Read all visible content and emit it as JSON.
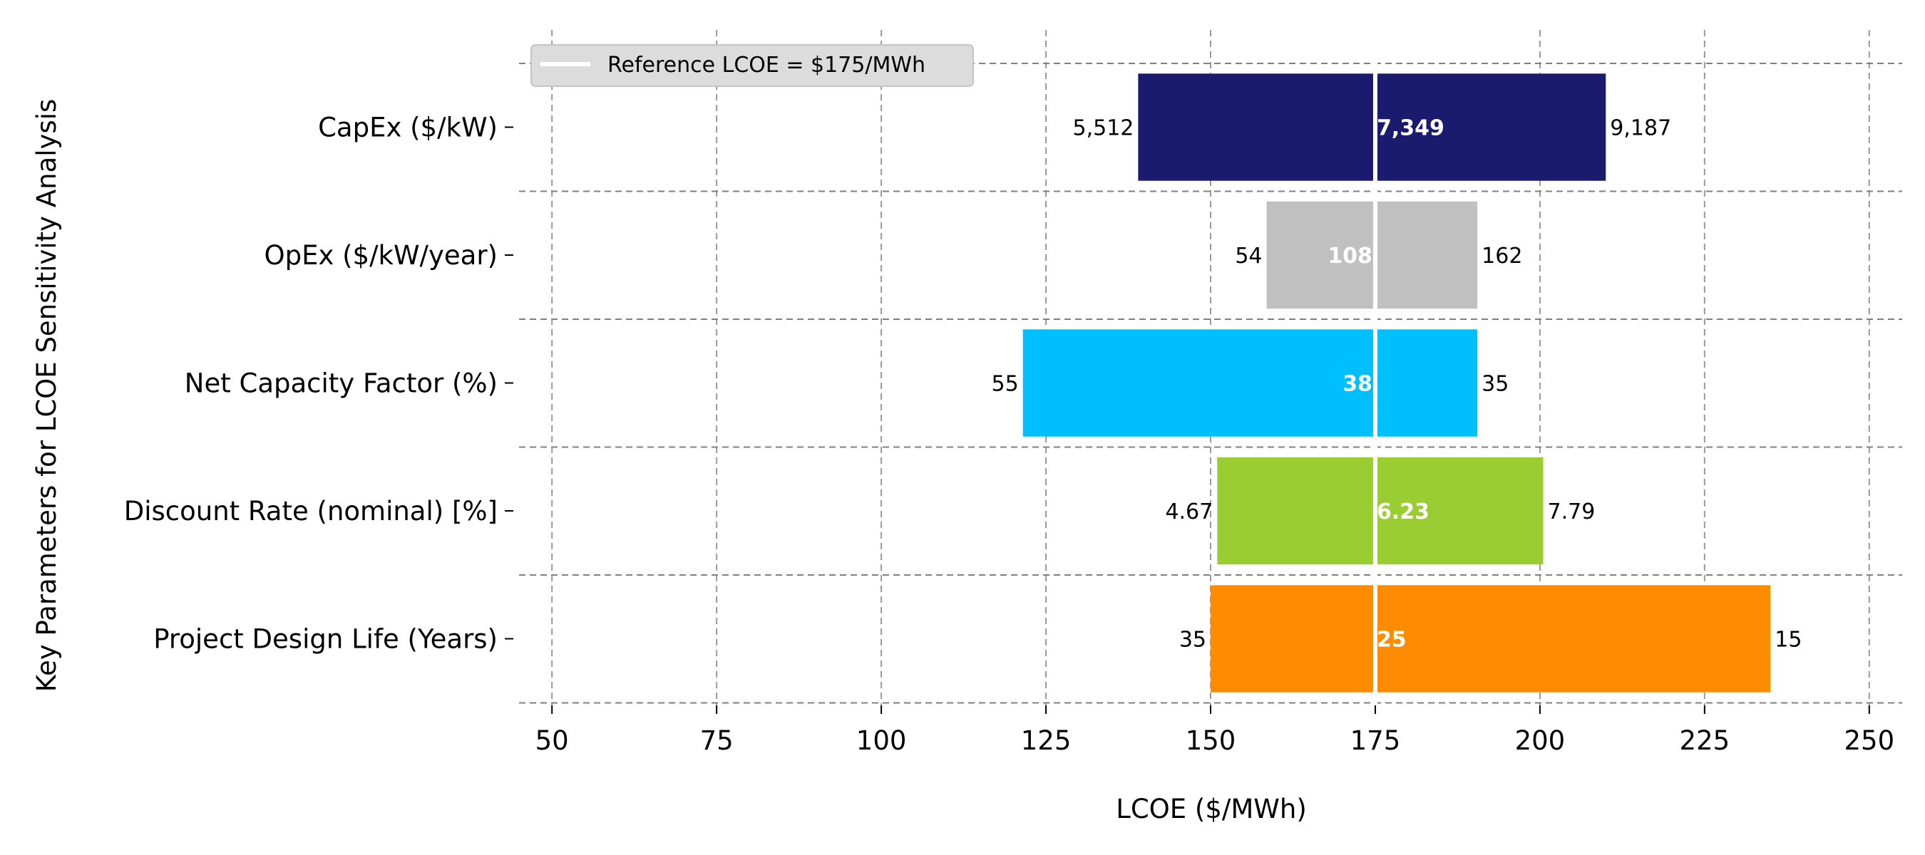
{
  "chart_data": {
    "type": "bar",
    "subtype": "tornado",
    "xlabel": "LCOE ($/MWh)",
    "ylabel": "Key Parameters for LCOE Sensitivity Analysis",
    "xlim": [
      45,
      255
    ],
    "xticks": [
      50,
      75,
      100,
      125,
      150,
      175,
      200,
      225,
      250
    ],
    "grid": true,
    "reference": {
      "value": 175,
      "label": "Reference LCOE = $175/MWh",
      "color": "#ffffff"
    },
    "legend_position": "top-left",
    "categories": [
      {
        "name": "CapEx ($/kW)",
        "low_lcoe": 139,
        "high_lcoe": 210,
        "low_label": "5,512",
        "base_label": "7,349",
        "high_label": "9,187",
        "color": "#1a1a6e"
      },
      {
        "name": "OpEx ($/kW/year)",
        "low_lcoe": 158.5,
        "high_lcoe": 190.5,
        "low_label": "54",
        "base_label": "108",
        "high_label": "162",
        "color": "#c0c0c0"
      },
      {
        "name": "Net Capacity Factor (%)",
        "low_lcoe": 121.5,
        "high_lcoe": 190.5,
        "low_label": "55",
        "base_label": "38",
        "high_label": "35",
        "color": "#00bfff"
      },
      {
        "name": "Discount Rate (nominal) [%]",
        "low_lcoe": 151,
        "high_lcoe": 200.5,
        "low_label": "4.67",
        "base_label": "6.23",
        "high_label": "7.79",
        "color": "#9acd32"
      },
      {
        "name": "Project Design Life (Years)",
        "low_lcoe": 150,
        "high_lcoe": 235,
        "low_label": "35",
        "base_label": "25",
        "high_label": "15",
        "color": "#ff8c00"
      }
    ]
  }
}
